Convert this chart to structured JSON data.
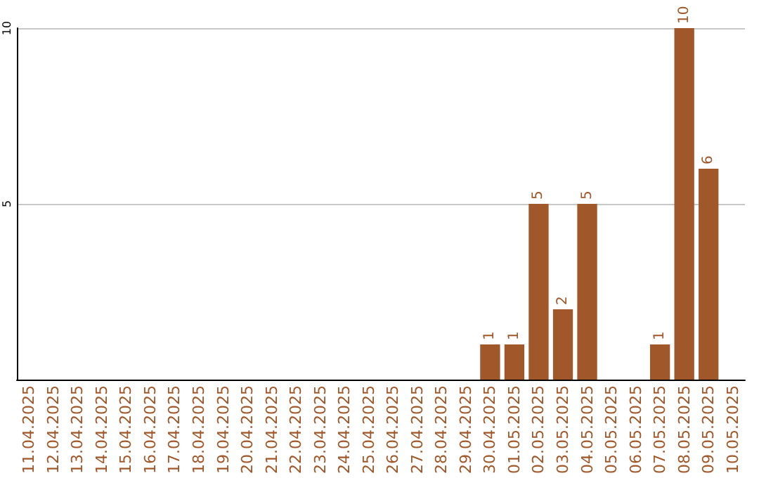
{
  "chart_data": {
    "type": "bar",
    "categories": [
      "11.04.2025",
      "12.04.2025",
      "13.04.2025",
      "14.04.2025",
      "15.04.2025",
      "16.04.2025",
      "17.04.2025",
      "18.04.2025",
      "19.04.2025",
      "20.04.2025",
      "21.04.2025",
      "22.04.2025",
      "23.04.2025",
      "24.04.2025",
      "25.04.2025",
      "26.04.2025",
      "27.04.2025",
      "28.04.2025",
      "29.04.2025",
      "30.04.2025",
      "01.05.2025",
      "02.05.2025",
      "03.05.2025",
      "04.05.2025",
      "05.05.2025",
      "06.05.2025",
      "07.05.2025",
      "08.05.2025",
      "09.05.2025",
      "10.05.2025"
    ],
    "values": [
      null,
      null,
      null,
      null,
      null,
      null,
      null,
      null,
      null,
      null,
      null,
      null,
      null,
      null,
      null,
      null,
      null,
      null,
      null,
      1,
      1,
      5,
      2,
      5,
      null,
      null,
      1,
      10,
      6,
      null
    ],
    "color": "#a0582a",
    "ylim": [
      0,
      10
    ],
    "yticks": [
      5,
      10
    ],
    "grid": "y",
    "data_labels": true
  }
}
